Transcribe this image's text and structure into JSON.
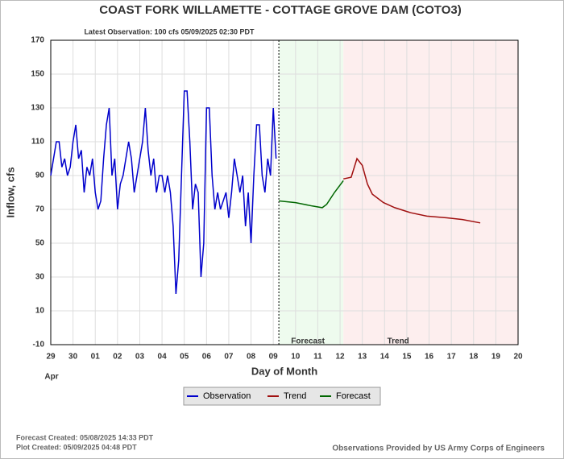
{
  "chart_data": {
    "type": "line",
    "title": "COAST FORK WILLAMETTE - COTTAGE GROVE DAM  (COTO3)",
    "subtitle": "Latest Observation: 100 cfs 05/09/2025 02:30 PDT",
    "y_label": "Inflow, cfs",
    "x_label": "Day of Month",
    "x_month_label": "Apr",
    "xlim": [
      0,
      21
    ],
    "xticks": [
      {
        "value": 0,
        "label": "29"
      },
      {
        "value": 1,
        "label": "30"
      },
      {
        "value": 2,
        "label": "01"
      },
      {
        "value": 3,
        "label": "02"
      },
      {
        "value": 4,
        "label": "03"
      },
      {
        "value": 5,
        "label": "04"
      },
      {
        "value": 6,
        "label": "05"
      },
      {
        "value": 7,
        "label": "06"
      },
      {
        "value": 8,
        "label": "07"
      },
      {
        "value": 9,
        "label": "08"
      },
      {
        "value": 10,
        "label": "09"
      },
      {
        "value": 11,
        "label": "10"
      },
      {
        "value": 12,
        "label": "11"
      },
      {
        "value": 13,
        "label": "12"
      },
      {
        "value": 14,
        "label": "13"
      },
      {
        "value": 15,
        "label": "14"
      },
      {
        "value": 16,
        "label": "15"
      },
      {
        "value": 17,
        "label": "16"
      },
      {
        "value": 18,
        "label": "17"
      },
      {
        "value": 19,
        "label": "18"
      },
      {
        "value": 20,
        "label": "19"
      },
      {
        "value": 21,
        "label": "20"
      }
    ],
    "ylim": [
      -10,
      170
    ],
    "yticks": [
      -10,
      10,
      30,
      50,
      70,
      90,
      110,
      130,
      150,
      170
    ],
    "grid": true,
    "regions": [
      {
        "label": "Forecast",
        "span": [
          10.25,
          13.15
        ],
        "color": "#eefbee"
      },
      {
        "label": "Trend",
        "span": [
          13.15,
          21
        ],
        "color": "#fdeeee"
      }
    ],
    "series": [
      {
        "name": "Observation",
        "color": "#0000cc",
        "x": [
          0,
          0.125,
          0.25,
          0.375,
          0.5,
          0.625,
          0.75,
          0.875,
          1,
          1.125,
          1.25,
          1.375,
          1.5,
          1.625,
          1.75,
          1.875,
          2,
          2.125,
          2.25,
          2.375,
          2.5,
          2.625,
          2.75,
          2.875,
          3,
          3.125,
          3.25,
          3.375,
          3.5,
          3.625,
          3.75,
          3.875,
          4,
          4.125,
          4.25,
          4.375,
          4.5,
          4.625,
          4.75,
          4.875,
          5,
          5.125,
          5.25,
          5.375,
          5.5,
          5.625,
          5.75,
          5.875,
          6,
          6.125,
          6.25,
          6.375,
          6.5,
          6.625,
          6.75,
          6.875,
          7,
          7.125,
          7.25,
          7.375,
          7.5,
          7.625,
          7.75,
          7.875,
          8,
          8.125,
          8.25,
          8.375,
          8.5,
          8.625,
          8.75,
          8.875,
          9,
          9.125,
          9.25,
          9.375,
          9.5,
          9.625,
          9.75,
          9.875,
          10,
          10.125
        ],
        "values": [
          90,
          100,
          110,
          110,
          95,
          100,
          90,
          95,
          110,
          120,
          100,
          105,
          80,
          95,
          90,
          100,
          80,
          70,
          75,
          100,
          120,
          130,
          90,
          100,
          70,
          85,
          90,
          100,
          110,
          100,
          80,
          90,
          100,
          110,
          130,
          105,
          90,
          100,
          80,
          90,
          90,
          80,
          90,
          80,
          60,
          20,
          40,
          90,
          140,
          140,
          110,
          70,
          85,
          80,
          30,
          50,
          130,
          130,
          90,
          70,
          80,
          70,
          75,
          80,
          65,
          80,
          100,
          90,
          80,
          90,
          60,
          80,
          50,
          90,
          120,
          120,
          90,
          80,
          100,
          90,
          130,
          100
        ]
      },
      {
        "name": "Trend",
        "color": "#a01010",
        "x": [
          13.15,
          13.5,
          13.76,
          14.0,
          14.23,
          14.45,
          14.95,
          15.46,
          16.18,
          16.9,
          17.8,
          18.5,
          19.3
        ],
        "values": [
          88,
          89,
          100,
          96,
          85,
          79,
          74,
          71,
          68,
          66,
          65,
          64,
          62
        ]
      },
      {
        "name": "Forecast",
        "color": "#006600",
        "x": [
          10.25,
          11.0,
          11.75,
          12.2,
          12.4,
          12.75,
          13.15
        ],
        "values": [
          75,
          74,
          72,
          71,
          73,
          80,
          87
        ]
      }
    ],
    "notes": [
      "Forecast Created: 05/08/2025 14:33 PDT",
      "Plot Created: 05/09/2025 04:48 PDT"
    ],
    "credit": "Observations Provided by US Army Corps of Engineers"
  }
}
